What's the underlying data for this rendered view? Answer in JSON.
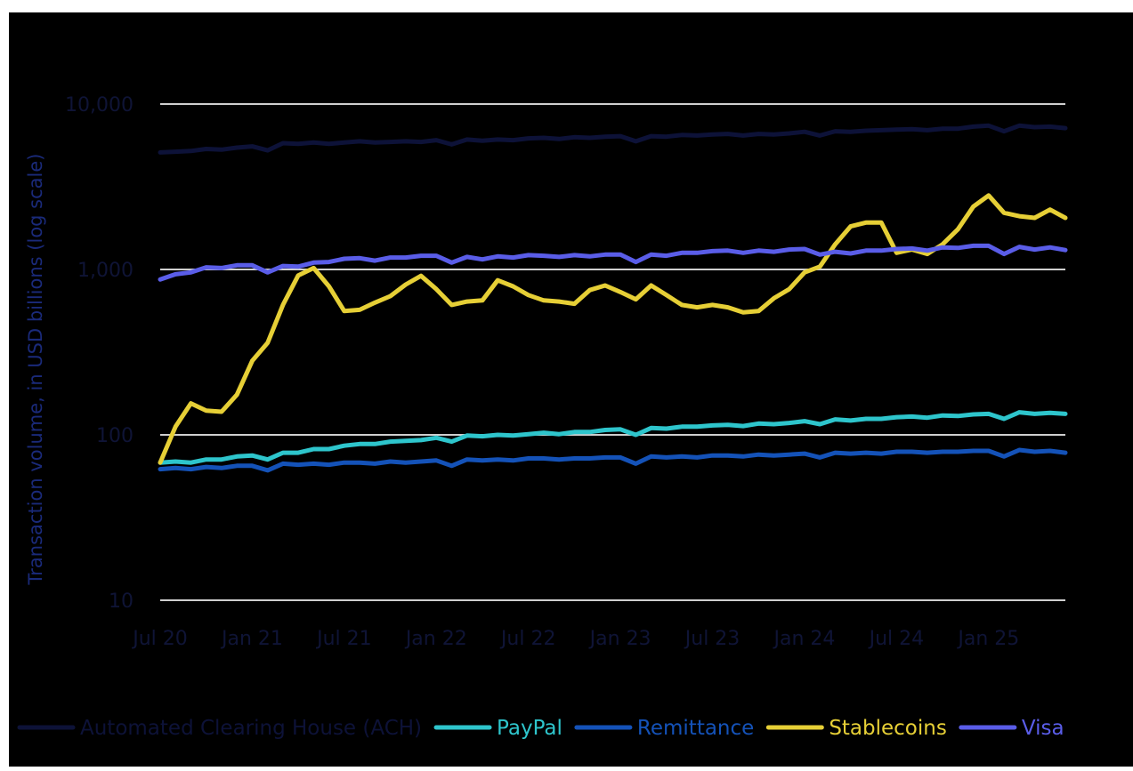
{
  "colors": {
    "background": "#000000",
    "page": "#ffffff",
    "gridline": "#cfcfcf",
    "axis_text": "#0f1436",
    "ylabel": "#1a2a7a"
  },
  "chart_data": {
    "type": "line",
    "title": "",
    "xlabel": "",
    "ylabel": "Transaction volume, in USD billions (log scale)",
    "y_scale": "log",
    "ylim": [
      10,
      10000
    ],
    "grid": true,
    "legend_position": "bottom",
    "x_ticks": [
      "Jul 20",
      "Jan 21",
      "Jul 21",
      "Jan 22",
      "Jul 22",
      "Jan 23",
      "Jul 23",
      "Jan 24",
      "Jul 24",
      "Jan 25"
    ],
    "y_ticks": [
      "10",
      "100",
      "1,000",
      "10,000"
    ],
    "x": [
      "Jul 20",
      "Aug 20",
      "Sep 20",
      "Oct 20",
      "Nov 20",
      "Dec 20",
      "Jan 21",
      "Feb 21",
      "Mar 21",
      "Apr 21",
      "May 21",
      "Jun 21",
      "Jul 21",
      "Aug 21",
      "Sep 21",
      "Oct 21",
      "Nov 21",
      "Dec 21",
      "Jan 22",
      "Feb 22",
      "Mar 22",
      "Apr 22",
      "May 22",
      "Jun 22",
      "Jul 22",
      "Aug 22",
      "Sep 22",
      "Oct 22",
      "Nov 22",
      "Dec 22",
      "Jan 23",
      "Feb 23",
      "Mar 23",
      "Apr 23",
      "May 23",
      "Jun 23",
      "Jul 23",
      "Aug 23",
      "Sep 23",
      "Oct 23",
      "Nov 23",
      "Dec 23",
      "Jan 24",
      "Feb 24",
      "Mar 24",
      "Apr 24",
      "May 24",
      "Jun 24",
      "Jul 24",
      "Aug 24",
      "Sep 24",
      "Oct 24",
      "Nov 24",
      "Dec 24",
      "Jan 25",
      "Feb 25",
      "Mar 25",
      "Apr 25",
      "May 25",
      "Jun 25"
    ],
    "series": [
      {
        "name": "Automated Clearing House (ACH)",
        "color": "#0d1238",
        "values": [
          5100,
          5150,
          5200,
          5350,
          5300,
          5450,
          5550,
          5250,
          5800,
          5750,
          5850,
          5750,
          5850,
          5950,
          5850,
          5900,
          5950,
          5900,
          6050,
          5700,
          6100,
          6000,
          6100,
          6050,
          6200,
          6250,
          6150,
          6300,
          6250,
          6350,
          6400,
          5950,
          6400,
          6350,
          6500,
          6450,
          6550,
          6600,
          6450,
          6600,
          6550,
          6650,
          6800,
          6450,
          6850,
          6800,
          6900,
          6950,
          7000,
          7050,
          6950,
          7100,
          7100,
          7300,
          7400,
          6850,
          7400,
          7250,
          7300,
          7150
        ]
      },
      {
        "name": "PayPal",
        "color": "#2ec5cc",
        "values": [
          68,
          69,
          68,
          71,
          71,
          74,
          75,
          71,
          78,
          78,
          82,
          82,
          86,
          88,
          88,
          91,
          92,
          93,
          96,
          91,
          99,
          98,
          100,
          99,
          101,
          103,
          101,
          104,
          104,
          107,
          108,
          100,
          110,
          109,
          112,
          112,
          114,
          115,
          113,
          117,
          116,
          118,
          121,
          116,
          124,
          122,
          125,
          125,
          128,
          129,
          127,
          131,
          130,
          133,
          134,
          125,
          137,
          134,
          136,
          134
        ]
      },
      {
        "name": "Remittance",
        "color": "#1452b8",
        "values": [
          62,
          63,
          62,
          64,
          63,
          65,
          65,
          61,
          67,
          66,
          67,
          66,
          68,
          68,
          67,
          69,
          68,
          69,
          70,
          65,
          71,
          70,
          71,
          70,
          72,
          72,
          71,
          72,
          72,
          73,
          73,
          67,
          74,
          73,
          74,
          73,
          75,
          75,
          74,
          76,
          75,
          76,
          77,
          73,
          78,
          77,
          78,
          77,
          79,
          79,
          78,
          79,
          79,
          80,
          80,
          74,
          81,
          79,
          80,
          78
        ]
      },
      {
        "name": "Stablecoins",
        "color": "#e6cf36",
        "values": [
          68,
          112,
          155,
          140,
          138,
          175,
          280,
          360,
          610,
          920,
          1020,
          790,
          560,
          570,
          630,
          690,
          810,
          915,
          760,
          610,
          640,
          650,
          860,
          790,
          700,
          650,
          640,
          620,
          750,
          800,
          730,
          660,
          800,
          700,
          610,
          590,
          610,
          590,
          550,
          560,
          670,
          760,
          960,
          1040,
          1420,
          1820,
          1920,
          1920,
          1260,
          1320,
          1240,
          1420,
          1750,
          2400,
          2800,
          2200,
          2100,
          2050,
          2300,
          2050
        ]
      },
      {
        "name": "Visa",
        "color": "#5a5de8",
        "values": [
          870,
          935,
          960,
          1030,
          1020,
          1060,
          1060,
          960,
          1050,
          1040,
          1100,
          1110,
          1160,
          1170,
          1130,
          1180,
          1180,
          1210,
          1210,
          1100,
          1190,
          1150,
          1200,
          1180,
          1220,
          1210,
          1190,
          1220,
          1200,
          1230,
          1230,
          1110,
          1230,
          1210,
          1260,
          1260,
          1290,
          1300,
          1260,
          1300,
          1280,
          1320,
          1330,
          1230,
          1280,
          1250,
          1300,
          1300,
          1330,
          1340,
          1300,
          1360,
          1350,
          1390,
          1390,
          1240,
          1370,
          1320,
          1360,
          1310
        ]
      }
    ]
  }
}
